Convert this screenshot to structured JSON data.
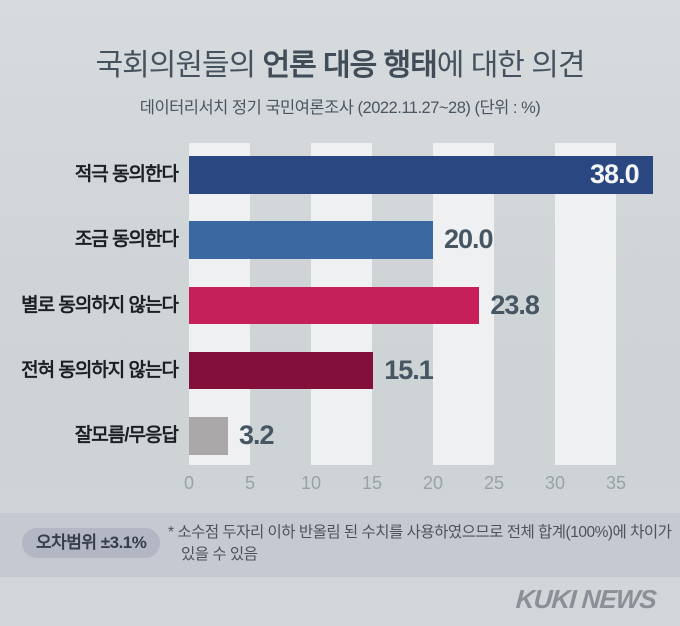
{
  "header": {
    "title_prefix": "국회의원들의 ",
    "title_bold": "언론 대응 행태",
    "title_suffix": "에 대한 의견",
    "subtitle": "데이터리서치 정기 국민여론조사 (2022.11.27~28)  (단위 : %)"
  },
  "chart_data": {
    "type": "bar",
    "orientation": "horizontal",
    "title": "국회의원들의 언론 대응 행태에 대한 의견",
    "subtitle": "데이터리서치 정기 국민여론조사 (2022.11.27~28)",
    "unit": "%",
    "categories": [
      "적극 동의한다",
      "조금 동의한다",
      "별로 동의하지 않는다",
      "전혀 동의하지 않는다",
      "잘모름/무응답"
    ],
    "values": [
      38.0,
      20.0,
      23.8,
      15.1,
      3.2
    ],
    "colors": [
      "#2b4781",
      "#3a68a1",
      "#c5205a",
      "#82103a",
      "#a9a7a8"
    ],
    "value_label_inside": [
      true,
      false,
      false,
      false,
      false
    ],
    "x_ticks": [
      0,
      5,
      10,
      15,
      20,
      25,
      30,
      35
    ],
    "xlim": [
      0,
      38.6
    ],
    "grid": "alternating vertical bands",
    "legend": "none"
  },
  "footer": {
    "margin_badge": "오차범위 ±3.1%",
    "note_lines": [
      "* 소수점 두자리 이하 반올림 된 수치를 사용하였으므로 전체 합계(100%)에 차이가",
      "있을 수 있음"
    ],
    "logo": "KUKI NEWS"
  }
}
